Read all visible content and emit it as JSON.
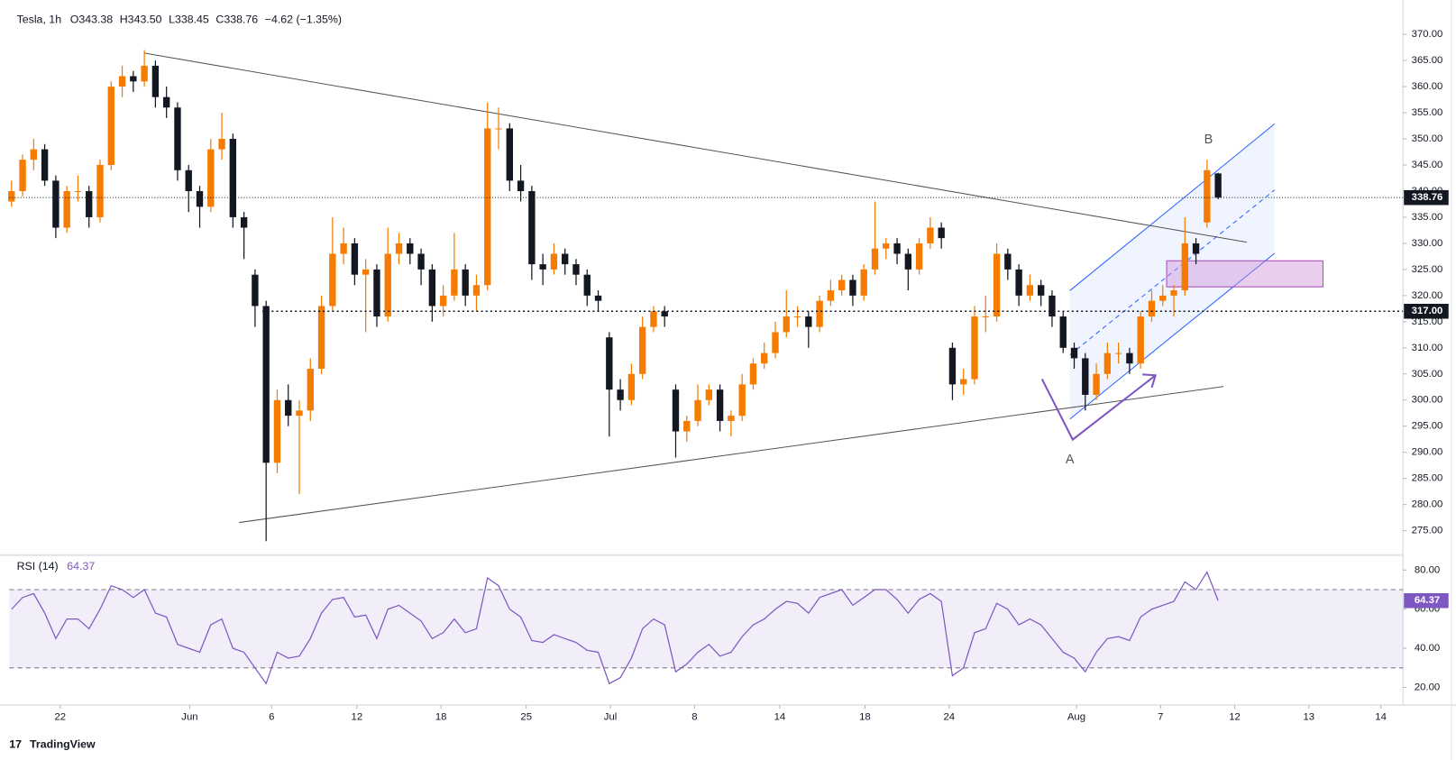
{
  "chart_data": {
    "type": "candlestick",
    "symbol": "Tesla, 1h",
    "ohlc_text": [
      "O343.38",
      "H343.50",
      "L338.45",
      "C338.76"
    ],
    "change_text": "−4.62 (−1.35%)",
    "up_color": "#f57c00",
    "down_color": "#131722",
    "grid": false,
    "ylim": [
      270.5,
      374.8
    ],
    "yticks": [
      {
        "value": 370,
        "label": "370.00"
      },
      {
        "value": 365,
        "label": "365.00"
      },
      {
        "value": 360,
        "label": "360.00"
      },
      {
        "value": 355,
        "label": "355.00"
      },
      {
        "value": 350,
        "label": "350.00"
      },
      {
        "value": 345,
        "label": "345.00"
      },
      {
        "value": 340,
        "label": "340.00"
      },
      {
        "value": 335,
        "label": "335.00"
      },
      {
        "value": 330,
        "label": "330.00"
      },
      {
        "value": 325,
        "label": "325.00"
      },
      {
        "value": 320,
        "label": "320.00"
      },
      {
        "value": 315,
        "label": "315.00"
      },
      {
        "value": 310,
        "label": "310.00"
      },
      {
        "value": 305,
        "label": "305.00"
      },
      {
        "value": 300,
        "label": "300.00"
      },
      {
        "value": 295,
        "label": "295.00"
      },
      {
        "value": 290,
        "label": "290.00"
      },
      {
        "value": 285,
        "label": "285.00"
      },
      {
        "value": 280,
        "label": "280.00"
      },
      {
        "value": 275,
        "label": "275.00"
      }
    ],
    "xlim": [
      -0.2,
      125.7
    ],
    "xticks": [
      {
        "value": 4.4,
        "label": "22"
      },
      {
        "value": 16.1,
        "label": "Jun"
      },
      {
        "value": 23.5,
        "label": "6"
      },
      {
        "value": 31.2,
        "label": "12"
      },
      {
        "value": 38.8,
        "label": "18"
      },
      {
        "value": 46.5,
        "label": "25"
      },
      {
        "value": 54.1,
        "label": "Jul"
      },
      {
        "value": 61.7,
        "label": "8"
      },
      {
        "value": 69.4,
        "label": "14"
      },
      {
        "value": 77.1,
        "label": "18"
      },
      {
        "value": 84.7,
        "label": "24"
      },
      {
        "value": 96.2,
        "label": "Aug"
      },
      {
        "value": 103.8,
        "label": "7"
      },
      {
        "value": 110.5,
        "label": "12"
      },
      {
        "value": 117.2,
        "label": "13"
      },
      {
        "value": 123.7,
        "label": "14"
      }
    ],
    "levels": [
      {
        "value": 317,
        "label": "317.00"
      }
    ],
    "annotations": [
      {
        "text": "A"
      },
      {
        "text": "B"
      }
    ],
    "candles": [
      [
        338,
        342,
        337,
        340
      ],
      [
        340,
        347,
        339,
        346
      ],
      [
        346,
        350,
        344,
        348
      ],
      [
        348,
        349,
        341,
        342
      ],
      [
        342,
        343,
        331,
        333
      ],
      [
        333,
        341,
        332,
        340
      ],
      [
        340,
        343,
        338,
        340
      ],
      [
        340,
        341,
        333,
        335
      ],
      [
        335,
        346,
        334,
        345
      ],
      [
        345,
        361,
        344,
        360
      ],
      [
        360,
        364,
        358,
        362
      ],
      [
        362,
        363,
        359,
        361
      ],
      [
        361,
        367,
        360,
        364
      ],
      [
        364,
        365,
        356,
        358
      ],
      [
        358,
        360,
        354,
        356
      ],
      [
        356,
        357,
        342,
        344
      ],
      [
        344,
        345,
        336,
        340
      ],
      [
        340,
        341,
        333,
        337
      ],
      [
        337,
        350,
        336,
        348
      ],
      [
        348,
        355,
        346,
        350
      ],
      [
        350,
        351,
        333,
        335
      ],
      [
        335,
        336,
        327,
        333
      ],
      [
        324,
        325,
        314,
        318
      ],
      [
        318,
        319,
        273,
        288
      ],
      [
        288,
        302,
        286,
        300
      ],
      [
        300,
        303,
        295,
        297
      ],
      [
        297,
        300,
        282,
        298
      ],
      [
        298,
        308,
        296,
        306
      ],
      [
        306,
        320,
        305,
        318
      ],
      [
        318,
        335,
        317,
        328
      ],
      [
        328,
        333,
        326,
        330
      ],
      [
        330,
        331,
        322,
        324
      ],
      [
        324,
        327,
        313,
        325
      ],
      [
        325,
        326,
        314,
        316
      ],
      [
        316,
        333,
        315,
        328
      ],
      [
        328,
        332,
        326,
        330
      ],
      [
        330,
        331,
        326,
        328
      ],
      [
        328,
        329,
        322,
        325
      ],
      [
        325,
        326,
        315,
        318
      ],
      [
        318,
        322,
        316,
        320
      ],
      [
        320,
        332,
        319,
        325
      ],
      [
        325,
        326,
        318,
        320
      ],
      [
        320,
        324,
        317,
        322
      ],
      [
        322,
        357,
        321,
        352
      ],
      [
        352,
        356,
        348,
        352
      ],
      [
        352,
        353,
        340,
        342
      ],
      [
        342,
        345,
        338,
        340
      ],
      [
        340,
        341,
        323,
        326
      ],
      [
        326,
        328,
        322,
        325
      ],
      [
        325,
        330,
        324,
        328
      ],
      [
        328,
        329,
        324,
        326
      ],
      [
        326,
        327,
        322,
        324
      ],
      [
        324,
        325,
        318,
        320
      ],
      [
        320,
        321,
        317,
        319
      ],
      [
        312,
        313,
        293,
        302
      ],
      [
        302,
        304,
        298,
        300
      ],
      [
        300,
        307,
        299,
        305
      ],
      [
        305,
        316,
        304,
        314
      ],
      [
        314,
        318,
        313,
        317
      ],
      [
        317,
        318,
        314,
        316
      ],
      [
        302,
        303,
        289,
        294
      ],
      [
        294,
        297,
        292,
        296
      ],
      [
        296,
        303,
        295,
        300
      ],
      [
        300,
        303,
        299,
        302
      ],
      [
        302,
        303,
        294,
        296
      ],
      [
        296,
        298,
        293,
        297
      ],
      [
        297,
        305,
        296,
        303
      ],
      [
        303,
        308,
        302,
        307
      ],
      [
        307,
        311,
        306,
        309
      ],
      [
        309,
        315,
        308,
        313
      ],
      [
        313,
        321,
        312,
        316
      ],
      [
        316,
        318,
        314,
        316
      ],
      [
        316,
        317,
        310,
        314
      ],
      [
        314,
        320,
        313,
        319
      ],
      [
        319,
        323,
        318,
        321
      ],
      [
        321,
        324,
        320,
        323
      ],
      [
        323,
        324,
        318,
        320
      ],
      [
        320,
        326,
        319,
        325
      ],
      [
        325,
        338,
        324,
        329
      ],
      [
        329,
        331,
        327,
        330
      ],
      [
        330,
        331,
        326,
        328
      ],
      [
        328,
        329,
        321,
        325
      ],
      [
        325,
        331,
        324,
        330
      ],
      [
        330,
        335,
        329,
        333
      ],
      [
        333,
        334,
        329,
        331
      ],
      [
        310,
        311,
        300,
        303
      ],
      [
        303,
        306,
        301,
        304
      ],
      [
        304,
        318,
        303,
        316
      ],
      [
        316,
        320,
        313,
        316
      ],
      [
        316,
        330,
        315,
        328
      ],
      [
        328,
        329,
        323,
        325
      ],
      [
        325,
        326,
        318,
        320
      ],
      [
        320,
        324,
        319,
        322
      ],
      [
        322,
        323,
        318,
        320
      ],
      [
        320,
        321,
        314,
        316
      ],
      [
        316,
        317,
        309,
        310
      ],
      [
        310,
        311,
        306,
        308
      ],
      [
        308,
        309,
        298,
        301
      ],
      [
        301,
        307,
        300,
        305
      ],
      [
        305,
        311,
        304,
        309
      ],
      [
        309,
        311,
        307,
        309
      ],
      [
        309,
        310,
        305,
        307
      ],
      [
        307,
        317,
        306,
        316
      ],
      [
        316,
        321,
        315,
        319
      ],
      [
        319,
        322,
        318,
        320
      ],
      [
        320,
        322,
        316,
        321
      ],
      [
        321,
        335,
        320,
        330
      ],
      [
        330,
        331,
        326,
        328
      ],
      [
        334,
        346,
        333,
        344
      ],
      [
        343.38,
        343.5,
        338.45,
        338.76
      ]
    ],
    "rsi": {
      "label": "RSI (14)",
      "color": "#7e57c2",
      "ylim": [
        11,
        86.7
      ],
      "yticks": [
        {
          "value": 80,
          "label": "80.00"
        },
        {
          "value": 60,
          "label": "60.00"
        },
        {
          "value": 40,
          "label": "40.00"
        },
        {
          "value": 20,
          "label": "20.00"
        }
      ],
      "upper_band": 70,
      "lower_band": 30,
      "values": [
        60,
        66,
        68,
        58,
        45,
        55,
        55,
        50,
        60,
        72,
        70,
        66,
        70,
        58,
        56,
        42,
        40,
        38,
        52,
        55,
        40,
        38,
        30,
        22,
        38,
        35,
        36,
        45,
        58,
        65,
        66,
        56,
        57,
        45,
        60,
        62,
        58,
        54,
        45,
        48,
        55,
        48,
        50,
        76,
        72,
        60,
        56,
        44,
        43,
        47,
        45,
        43,
        39,
        38,
        22,
        25,
        35,
        50,
        55,
        52,
        28,
        32,
        38,
        42,
        36,
        38,
        46,
        52,
        55,
        60,
        64,
        63,
        58,
        66,
        68,
        70,
        62,
        66,
        70,
        70,
        65,
        58,
        65,
        68,
        64,
        26,
        30,
        48,
        50,
        63,
        60,
        52,
        55,
        52,
        45,
        38,
        35,
        28,
        38,
        45,
        46,
        44,
        56,
        60,
        62,
        64,
        74,
        70,
        79,
        64.37
      ]
    },
    "brand": "TradingView"
  }
}
